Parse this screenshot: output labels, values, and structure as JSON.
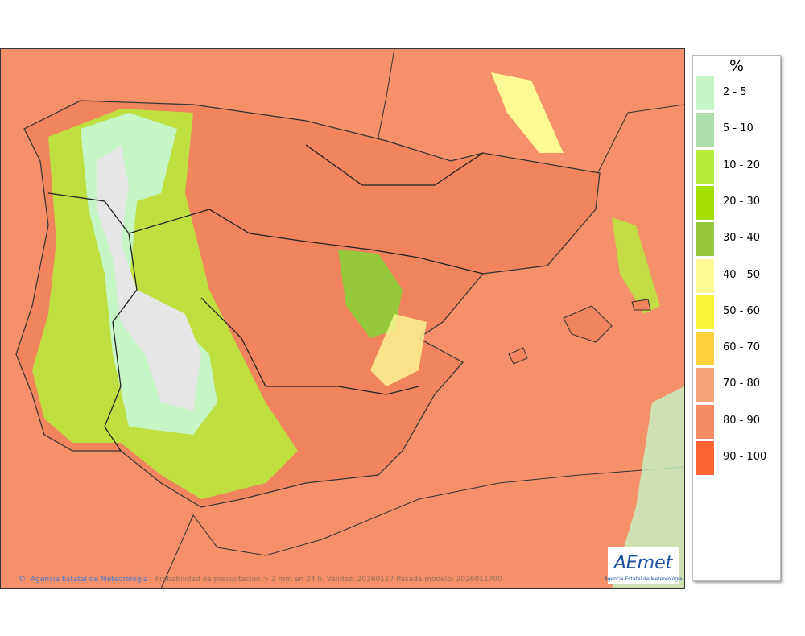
{
  "legend": {
    "title": "%",
    "items": [
      {
        "label": "2 - 5",
        "color": "#c6f5c6"
      },
      {
        "label": "5 - 10",
        "color": "#aee0ae"
      },
      {
        "label": "10 - 20",
        "color": "#b6ee3c"
      },
      {
        "label": "20 - 30",
        "color": "#a2de00"
      },
      {
        "label": "30 - 40",
        "color": "#96c83c"
      },
      {
        "label": "40 - 50",
        "color": "#fdfa96"
      },
      {
        "label": "50 - 60",
        "color": "#fbf63a"
      },
      {
        "label": "60 - 70",
        "color": "#fdd23c"
      },
      {
        "label": "70 - 80",
        "color": "#f5a47a"
      },
      {
        "label": "80 - 90",
        "color": "#f58c64"
      },
      {
        "label": "90 - 100",
        "color": "#fd6434"
      }
    ]
  },
  "footer": {
    "copyright": "©",
    "credit": "Agencia Estatal de Meteorología",
    "caption": "Probabilidad de precipitación > 2 mm en 24 h. Validez: 20260117 Pasada modelo: 2026011700"
  },
  "logo": {
    "name": "AEmet",
    "subtitle": "Agencia Estatal de Meteorología"
  }
}
